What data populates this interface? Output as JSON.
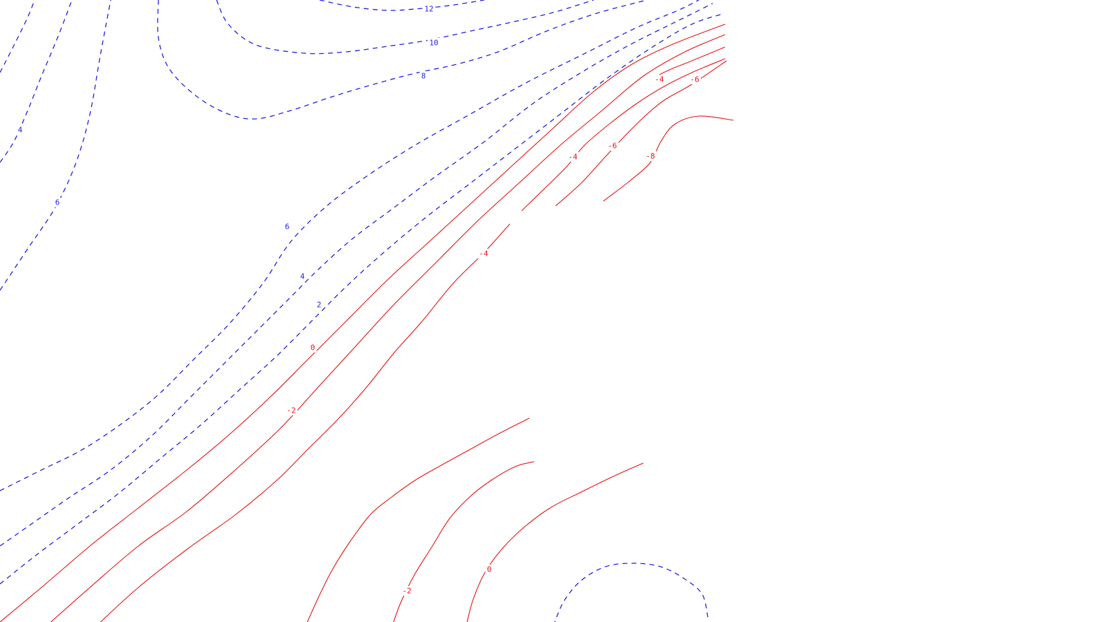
{
  "chart_data": {
    "type": "contour",
    "line_styles": {
      "positive": "dashed",
      "negative": "solid"
    },
    "colors": {
      "positive": "#1f1fe0",
      "negative": "#e81010",
      "background": "#ffffff"
    },
    "contour_labels": [
      {
        "id": "pos-12",
        "text": "12",
        "sign": "positive"
      },
      {
        "id": "pos-10",
        "text": "10",
        "sign": "positive"
      },
      {
        "id": "pos-8",
        "text": "8",
        "sign": "positive"
      },
      {
        "id": "pos-4-left",
        "text": "4",
        "sign": "positive"
      },
      {
        "id": "pos-6-left",
        "text": "6",
        "sign": "positive"
      },
      {
        "id": "pos-6-mid",
        "text": "6",
        "sign": "positive"
      },
      {
        "id": "pos-4-mid",
        "text": "4",
        "sign": "positive"
      },
      {
        "id": "pos-2-mid",
        "text": "2",
        "sign": "positive"
      },
      {
        "id": "neg-0-mid",
        "text": "0",
        "sign": "negative"
      },
      {
        "id": "neg-2-mid",
        "text": "-2",
        "sign": "negative"
      },
      {
        "id": "neg-4-mid",
        "text": "-4",
        "sign": "negative"
      },
      {
        "id": "neg-4-upper",
        "text": "-4",
        "sign": "negative"
      },
      {
        "id": "neg-6-upper",
        "text": "-6",
        "sign": "negative"
      },
      {
        "id": "neg-8-upper",
        "text": "-8",
        "sign": "negative"
      },
      {
        "id": "neg-4-top",
        "text": "-4",
        "sign": "negative"
      },
      {
        "id": "neg-6-top",
        "text": "-6",
        "sign": "negative"
      },
      {
        "id": "neg-2-bottom",
        "text": "-2",
        "sign": "negative"
      },
      {
        "id": "neg-0-bottom",
        "text": "0",
        "sign": "negative"
      }
    ]
  }
}
